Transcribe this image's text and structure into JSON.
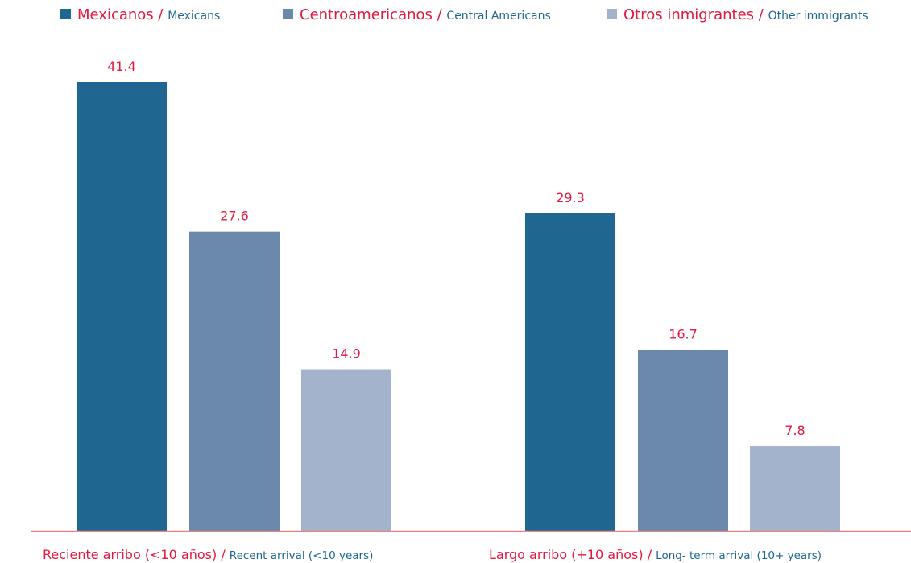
{
  "chart_data": {
    "type": "bar",
    "categories": [
      {
        "es": "Reciente arribo (<10 años)",
        "sep": " / ",
        "en": "Recent arrival (<10 years)"
      },
      {
        "es": "Largo arribo (+10 años)",
        "sep": " / ",
        "en": "Long- term arrival (10+ years)"
      }
    ],
    "series": [
      {
        "name_es": "Mexicanos",
        "sep": " / ",
        "name_en": "Mexicans",
        "color": "#1f6690",
        "values": [
          41.4,
          29.3
        ]
      },
      {
        "name_es": "Centroamericanos",
        "sep": " / ",
        "name_en": "Central Americans",
        "color": "#6a89ab",
        "values": [
          27.6,
          16.7
        ]
      },
      {
        "name_es": "Otros inmigrantes",
        "sep": " / ",
        "name_en": "Other immigrants",
        "color": "#a3b3cb",
        "values": [
          14.9,
          7.8
        ]
      }
    ],
    "value_label_color": "#e2183d",
    "baseline_color": "#e8857f",
    "legend_position": "top",
    "grid": false
  }
}
